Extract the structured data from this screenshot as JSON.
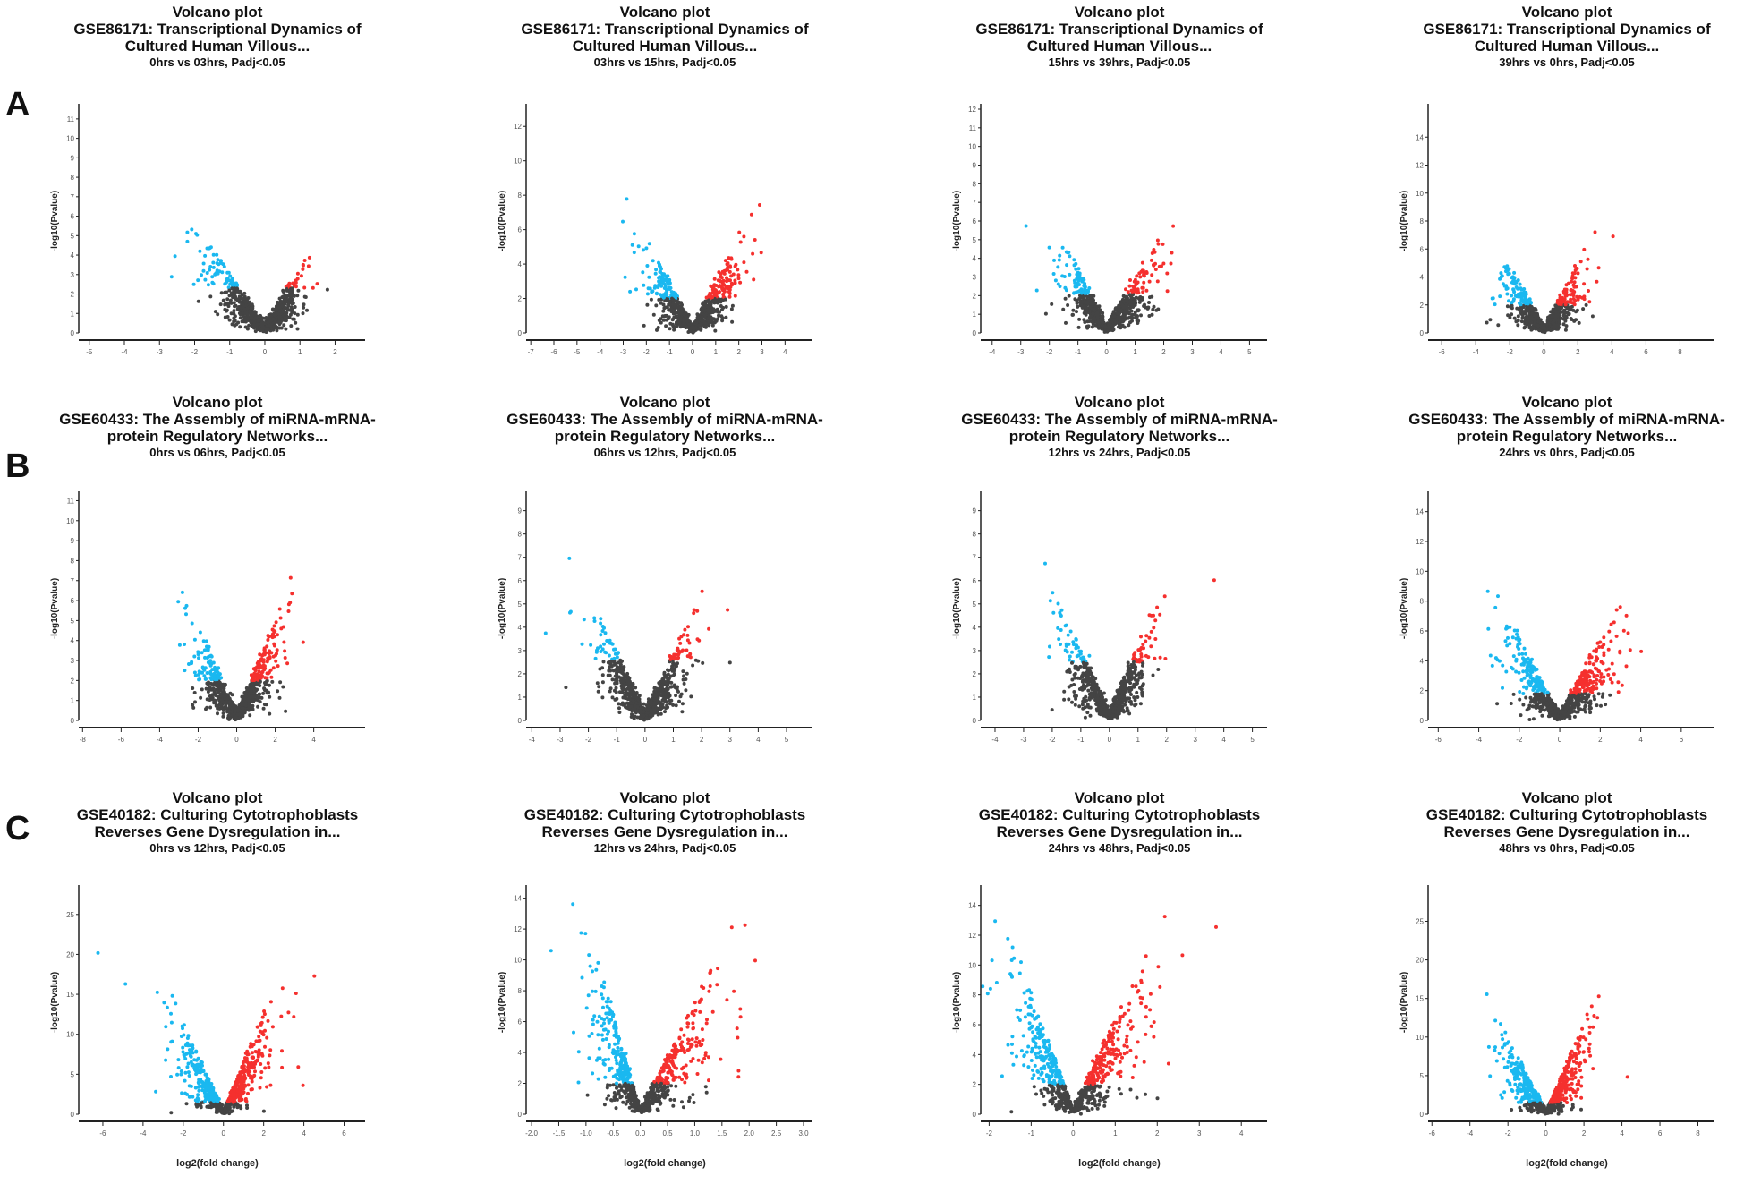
{
  "row_labels": [
    "A",
    "B",
    "C"
  ],
  "chart_data": [
    {
      "type": "scatter",
      "title": "Volcano plot",
      "subtitle_1": "GSE86171: Transcriptional Dynamics of",
      "subtitle_2": "Cultured Human Villous...",
      "comparison": "0hrs vs 03hrs, Padj<0.05",
      "xlabel": "",
      "ylabel": "-log10(Pvalue)",
      "xlim": [
        -5.3,
        2.6
      ],
      "ylim": [
        0,
        11.5
      ],
      "xticks": [
        -5,
        -4,
        -3,
        -2,
        -1,
        0,
        1,
        2
      ],
      "yticks": [
        0,
        1,
        2,
        3,
        4,
        5,
        6,
        7,
        8,
        9,
        10,
        11
      ],
      "threshold": 2.3,
      "series": [
        {
          "name": "down",
          "color": "#1ab8f0",
          "sd": 1.1,
          "slope": 3.2
        },
        {
          "name": "up",
          "color": "#f5302e",
          "sd": 0.6,
          "slope": 3.4
        },
        {
          "name": "not significant",
          "color": "#444444"
        }
      ]
    },
    {
      "type": "scatter",
      "title": "Volcano plot",
      "subtitle_1": "GSE86171: Transcriptional Dynamics of",
      "subtitle_2": "Cultured Human Villous...",
      "comparison": "03hrs vs 15hrs, Padj<0.05",
      "xlabel": "",
      "ylabel": "-log10(Pvalue)",
      "xlim": [
        -7.2,
        4.8
      ],
      "ylim": [
        0,
        13
      ],
      "xticks": [
        -7,
        -6,
        -5,
        -4,
        -3,
        -2,
        -1,
        0,
        1,
        2,
        3,
        4
      ],
      "yticks": [
        0,
        2,
        4,
        6,
        8,
        10,
        12
      ],
      "threshold": 2,
      "series": [
        {
          "name": "down",
          "color": "#1ab8f0",
          "sd": 1.3,
          "slope": 3.0
        },
        {
          "name": "up",
          "color": "#f5302e",
          "sd": 1.2,
          "slope": 3.0
        },
        {
          "name": "not significant",
          "color": "#444444"
        }
      ]
    },
    {
      "type": "scatter",
      "title": "Volcano plot",
      "subtitle_1": "GSE86171: Transcriptional Dynamics of",
      "subtitle_2": "Cultured Human Villous...",
      "comparison": "15hrs vs 39hrs, Padj<0.05",
      "xlabel": "",
      "ylabel": "-log10(Pvalue)",
      "xlim": [
        -4.4,
        5.3
      ],
      "ylim": [
        0,
        12
      ],
      "xticks": [
        -4,
        -3,
        -2,
        -1,
        0,
        1,
        2,
        3,
        4,
        5
      ],
      "yticks": [
        0,
        1,
        2,
        3,
        4,
        5,
        6,
        7,
        8,
        9,
        10,
        11,
        12
      ],
      "threshold": 2.1,
      "series": [
        {
          "name": "down",
          "color": "#1ab8f0",
          "sd": 0.9,
          "slope": 3.6
        },
        {
          "name": "up",
          "color": "#f5302e",
          "sd": 1.1,
          "slope": 3.0
        },
        {
          "name": "not significant",
          "color": "#444444"
        }
      ]
    },
    {
      "type": "scatter",
      "title": "Volcano plot",
      "subtitle_1": "GSE86171: Transcriptional Dynamics of",
      "subtitle_2": "Cultured Human Villous...",
      "comparison": "39hrs vs 0hrs, Padj<0.05",
      "xlabel": "",
      "ylabel": "-log10(Pvalue)",
      "xlim": [
        -6.8,
        9.5
      ],
      "ylim": [
        0,
        16
      ],
      "xticks": [
        -6,
        -4,
        -2,
        0,
        2,
        4,
        6,
        8
      ],
      "yticks": [
        0,
        2,
        4,
        6,
        8,
        10,
        12,
        14
      ],
      "threshold": 2,
      "series": [
        {
          "name": "down",
          "color": "#1ab8f0",
          "sd": 1.5,
          "slope": 2.6
        },
        {
          "name": "up",
          "color": "#f5302e",
          "sd": 1.4,
          "slope": 2.6
        },
        {
          "name": "not significant",
          "color": "#444444"
        }
      ]
    },
    {
      "type": "scatter",
      "title": "Volcano plot",
      "subtitle_1": "GSE60433: The Assembly of miRNA-mRNA-",
      "subtitle_2": "protein Regulatory Networks...",
      "comparison": "0hrs vs 06hrs, Padj<0.05",
      "xlabel": "",
      "ylabel": "-log10(Pvalue)",
      "xlim": [
        -8.2,
        6.2
      ],
      "ylim": [
        0,
        11.2
      ],
      "xticks": [
        -8,
        -6,
        -4,
        -2,
        0,
        2,
        4
      ],
      "yticks": [
        0,
        1,
        2,
        3,
        4,
        5,
        6,
        7,
        8,
        9,
        10,
        11
      ],
      "threshold": 2,
      "series": [
        {
          "name": "down",
          "color": "#1ab8f0",
          "sd": 1.3,
          "slope": 2.6
        },
        {
          "name": "up",
          "color": "#f5302e",
          "sd": 1.5,
          "slope": 2.8
        },
        {
          "name": "not significant",
          "color": "#444444"
        }
      ]
    },
    {
      "type": "scatter",
      "title": "Volcano plot",
      "subtitle_1": "GSE60433: The Assembly of miRNA-mRNA-",
      "subtitle_2": "protein Regulatory Networks...",
      "comparison": "06hrs vs 12hrs, Padj<0.05",
      "xlabel": "",
      "ylabel": "-log10(Pvalue)",
      "xlim": [
        -4.2,
        5.6
      ],
      "ylim": [
        0,
        9.6
      ],
      "xticks": [
        -4,
        -3,
        -2,
        -1,
        0,
        1,
        2,
        3,
        4,
        5
      ],
      "yticks": [
        0,
        1,
        2,
        3,
        4,
        5,
        6,
        7,
        8,
        9
      ],
      "threshold": 2.6,
      "series": [
        {
          "name": "down",
          "color": "#1ab8f0",
          "sd": 1.0,
          "slope": 3.0
        },
        {
          "name": "up",
          "color": "#f5302e",
          "sd": 1.0,
          "slope": 3.0
        },
        {
          "name": "not significant",
          "color": "#444444"
        }
      ]
    },
    {
      "type": "scatter",
      "title": "Volcano plot",
      "subtitle_1": "GSE60433: The Assembly of miRNA-mRNA-",
      "subtitle_2": "protein Regulatory Networks...",
      "comparison": "12hrs vs 24hrs, Padj<0.05",
      "xlabel": "",
      "ylabel": "-log10(Pvalue)",
      "xlim": [
        -4.5,
        5.2
      ],
      "ylim": [
        0,
        9.6
      ],
      "xticks": [
        -4,
        -3,
        -2,
        -1,
        0,
        1,
        2,
        3,
        4,
        5
      ],
      "yticks": [
        0,
        1,
        2,
        3,
        4,
        5,
        6,
        7,
        8,
        9
      ],
      "threshold": 2.5,
      "series": [
        {
          "name": "down",
          "color": "#1ab8f0",
          "sd": 1.0,
          "slope": 3.2
        },
        {
          "name": "up",
          "color": "#f5302e",
          "sd": 0.9,
          "slope": 3.4
        },
        {
          "name": "not significant",
          "color": "#444444"
        }
      ]
    },
    {
      "type": "scatter",
      "title": "Volcano plot",
      "subtitle_1": "GSE60433: The Assembly of miRNA-mRNA-",
      "subtitle_2": "protein Regulatory Networks...",
      "comparison": "24hrs vs 0hrs, Padj<0.05",
      "xlabel": "",
      "ylabel": "-log10(Pvalue)",
      "xlim": [
        -6.5,
        7.2
      ],
      "ylim": [
        0,
        15
      ],
      "xticks": [
        -6,
        -4,
        -2,
        0,
        2,
        4,
        6
      ],
      "yticks": [
        0,
        2,
        4,
        6,
        8,
        10,
        12,
        14
      ],
      "threshold": 1.8,
      "series": [
        {
          "name": "down",
          "color": "#1ab8f0",
          "sd": 1.7,
          "slope": 3.0
        },
        {
          "name": "up",
          "color": "#f5302e",
          "sd": 1.6,
          "slope": 3.0
        },
        {
          "name": "not significant",
          "color": "#444444"
        }
      ]
    },
    {
      "type": "scatter",
      "title": "Volcano plot",
      "subtitle_1": "GSE40182: Culturing Cytotrophoblasts",
      "subtitle_2": "Reverses Gene Dysregulation in...",
      "comparison": "0hrs vs 12hrs, Padj<0.05",
      "xlabel": "log2(fold change)",
      "ylabel": "-log10(Pvalue)",
      "xlim": [
        -7.2,
        6.6
      ],
      "ylim": [
        0,
        28
      ],
      "xticks": [
        -6,
        -4,
        -2,
        0,
        2,
        4,
        6
      ],
      "yticks": [
        0,
        5,
        10,
        15,
        20,
        25
      ],
      "threshold": 1.5,
      "series": [
        {
          "name": "down",
          "color": "#1ab8f0",
          "sd": 1.5,
          "slope": 6.5
        },
        {
          "name": "up",
          "color": "#f5302e",
          "sd": 1.4,
          "slope": 7.0
        },
        {
          "name": "not significant",
          "color": "#444444"
        }
      ]
    },
    {
      "type": "scatter",
      "title": "Volcano plot",
      "subtitle_1": "GSE40182: Culturing Cytotrophoblasts",
      "subtitle_2": "Reverses Gene Dysregulation in...",
      "comparison": "12hrs vs 24hrs, Padj<0.05",
      "xlabel": "log2(fold change)",
      "ylabel": "-log10(Pvalue)",
      "xlim": [
        -2.1,
        3.0
      ],
      "ylim": [
        0,
        14.5
      ],
      "xticks": [
        -2.0,
        -1.5,
        -1.0,
        -0.5,
        0.0,
        0.5,
        1.0,
        1.5,
        2.0,
        2.5,
        3.0
      ],
      "yticks": [
        0,
        2,
        4,
        6,
        8,
        10,
        12,
        14
      ],
      "threshold": 2,
      "series": [
        {
          "name": "down",
          "color": "#1ab8f0",
          "sd": 0.55,
          "slope": 14
        },
        {
          "name": "up",
          "color": "#f5302e",
          "sd": 0.8,
          "slope": 8
        },
        {
          "name": "not significant",
          "color": "#444444"
        }
      ]
    },
    {
      "type": "scatter",
      "title": "Volcano plot",
      "subtitle_1": "GSE40182: Culturing Cytotrophoblasts",
      "subtitle_2": "Reverses Gene Dysregulation in...",
      "comparison": "24hrs vs 48hrs, Padj<0.05",
      "xlabel": "log2(fold change)",
      "ylabel": "-log10(Pvalue)",
      "xlim": [
        -2.2,
        4.4
      ],
      "ylim": [
        0,
        15
      ],
      "xticks": [
        -2,
        -1,
        0,
        1,
        2,
        3,
        4
      ],
      "yticks": [
        0,
        2,
        4,
        6,
        8,
        10,
        12,
        14
      ],
      "threshold": 2,
      "series": [
        {
          "name": "down",
          "color": "#1ab8f0",
          "sd": 0.8,
          "slope": 9
        },
        {
          "name": "up",
          "color": "#f5302e",
          "sd": 1.0,
          "slope": 7
        },
        {
          "name": "not significant",
          "color": "#444444"
        }
      ]
    },
    {
      "type": "scatter",
      "title": "Volcano plot",
      "subtitle_1": "GSE40182: Culturing Cytotrophoblasts",
      "subtitle_2": "Reverses Gene Dysregulation in...",
      "comparison": "48hrs vs 0hrs, Padj<0.05",
      "xlabel": "log2(fold change)",
      "ylabel": "-log10(Pvalue)",
      "xlim": [
        -6.2,
        8.4
      ],
      "ylim": [
        0,
        29
      ],
      "xticks": [
        -6,
        -4,
        -2,
        0,
        2,
        4,
        6,
        8
      ],
      "yticks": [
        0,
        5,
        10,
        15,
        20,
        25
      ],
      "threshold": 1.5,
      "series": [
        {
          "name": "down",
          "color": "#1ab8f0",
          "sd": 1.4,
          "slope": 5.5
        },
        {
          "name": "up",
          "color": "#f5302e",
          "sd": 1.3,
          "slope": 6.5
        },
        {
          "name": "not significant",
          "color": "#444444"
        }
      ]
    }
  ]
}
